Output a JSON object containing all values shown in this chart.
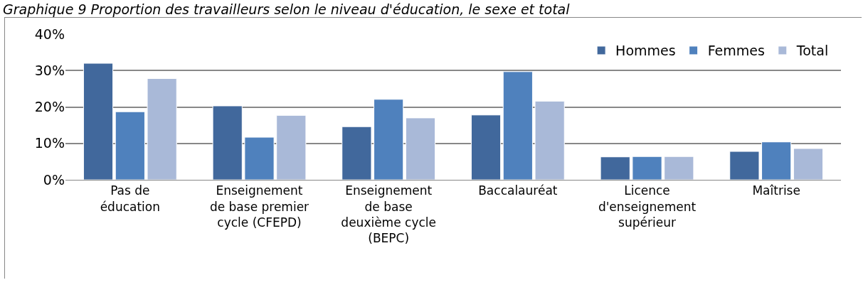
{
  "chart_data": {
    "type": "bar",
    "title": "Graphique 9 Proportion des travailleurs selon le niveau d'éducation, le sexe et total",
    "categories": [
      "Pas de\néducation",
      "Enseignement\nde base premier\ncycle (CFEPD)",
      "Enseignement\nde base\ndeuxième cycle\n(BEPC)",
      "Baccalauréat",
      "Licence\nd'enseignement\nsupérieur",
      "Maîtrise"
    ],
    "series": [
      {
        "name": "Hommes",
        "color": "#41689c",
        "values": [
          32.0,
          20.3,
          14.6,
          17.8,
          6.3,
          7.8
        ]
      },
      {
        "name": "Femmes",
        "color": "#4f81bd",
        "values": [
          18.7,
          11.7,
          22.1,
          29.7,
          6.4,
          10.4
        ]
      },
      {
        "name": "Total",
        "color": "#a9b9d8",
        "values": [
          27.8,
          17.7,
          17.0,
          21.6,
          6.4,
          8.6
        ]
      }
    ],
    "ylim": [
      0,
      40
    ],
    "yticks": [
      {
        "value": 0,
        "label": "0%"
      },
      {
        "value": 10,
        "label": "10%"
      },
      {
        "value": 20,
        "label": "20%"
      },
      {
        "value": 30,
        "label": "30%"
      },
      {
        "value": 40,
        "label": "40%"
      }
    ],
    "grid": "y",
    "legend": "top right"
  }
}
